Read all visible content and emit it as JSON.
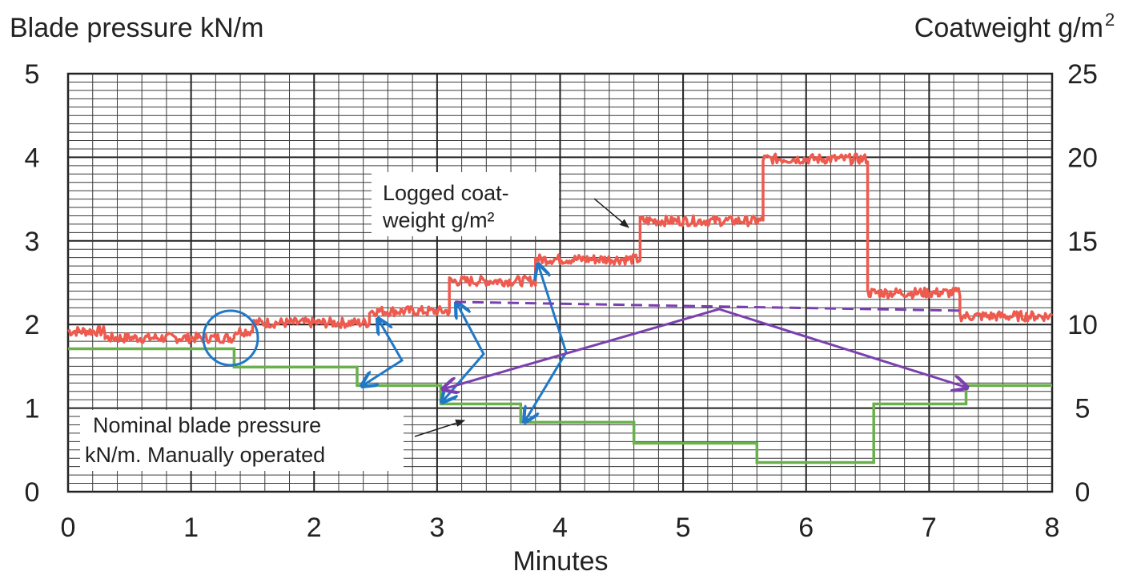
{
  "chart_data": {
    "type": "line",
    "xlabel": "Minutes",
    "ylabel_left": "Blade pressure kN/m",
    "ylabel_right_main": "Coatweight g/m",
    "ylabel_right_sup": "2",
    "xlim": [
      0,
      8
    ],
    "ylim_left": [
      0,
      5
    ],
    "ylim_right": [
      0,
      25
    ],
    "x_ticks": [
      "0",
      "1",
      "2",
      "3",
      "4",
      "5",
      "6",
      "7",
      "8"
    ],
    "y_left_ticks": [
      "0",
      "1",
      "2",
      "3",
      "4",
      "5"
    ],
    "y_right_ticks": [
      "0",
      "5",
      "10",
      "15",
      "20",
      "25"
    ],
    "grid": true,
    "series": [
      {
        "name": "Logged coat-weight g/m²",
        "axis": "right",
        "color": "#ee5a4e",
        "noise": 0.25,
        "segments": [
          {
            "x0": 0.0,
            "x1": 0.3,
            "y": 9.6
          },
          {
            "x0": 0.3,
            "x1": 1.35,
            "y": 9.2
          },
          {
            "x0": 1.35,
            "x1": 1.5,
            "y": 9.6
          },
          {
            "x0": 1.5,
            "x1": 2.45,
            "y": 10.1
          },
          {
            "x0": 2.45,
            "x1": 3.1,
            "y": 10.8
          },
          {
            "x0": 3.1,
            "x1": 3.8,
            "y": 12.6
          },
          {
            "x0": 3.8,
            "x1": 4.65,
            "y": 13.9
          },
          {
            "x0": 4.65,
            "x1": 5.65,
            "y": 16.2
          },
          {
            "x0": 5.65,
            "x1": 6.5,
            "y": 19.9
          },
          {
            "x0": 6.5,
            "x1": 7.25,
            "y": 11.9
          },
          {
            "x0": 7.25,
            "x1": 8.0,
            "y": 10.5
          }
        ]
      },
      {
        "name": "Nominal blade pressure kN/m. Manually operated",
        "axis": "left",
        "color": "#6ab04c",
        "steps": [
          {
            "x0": 0.0,
            "x1": 1.35,
            "y": 1.71
          },
          {
            "x0": 1.35,
            "x1": 2.35,
            "y": 1.49
          },
          {
            "x0": 2.35,
            "x1": 3.03,
            "y": 1.27
          },
          {
            "x0": 3.03,
            "x1": 3.68,
            "y": 1.05
          },
          {
            "x0": 3.68,
            "x1": 4.6,
            "y": 0.83
          },
          {
            "x0": 4.6,
            "x1": 5.6,
            "y": 0.58
          },
          {
            "x0": 5.6,
            "x1": 6.55,
            "y": 0.35
          },
          {
            "x0": 6.55,
            "x1": 7.3,
            "y": 1.05
          },
          {
            "x0": 7.3,
            "x1": 8.0,
            "y": 1.27
          }
        ]
      }
    ],
    "annotations": {
      "coat_label_lines": [
        "Logged  coat-",
        "weight g/m²"
      ],
      "blade_label_lines": [
        "Nominal blade pressure",
        "kN/m. Manually operated"
      ]
    }
  }
}
